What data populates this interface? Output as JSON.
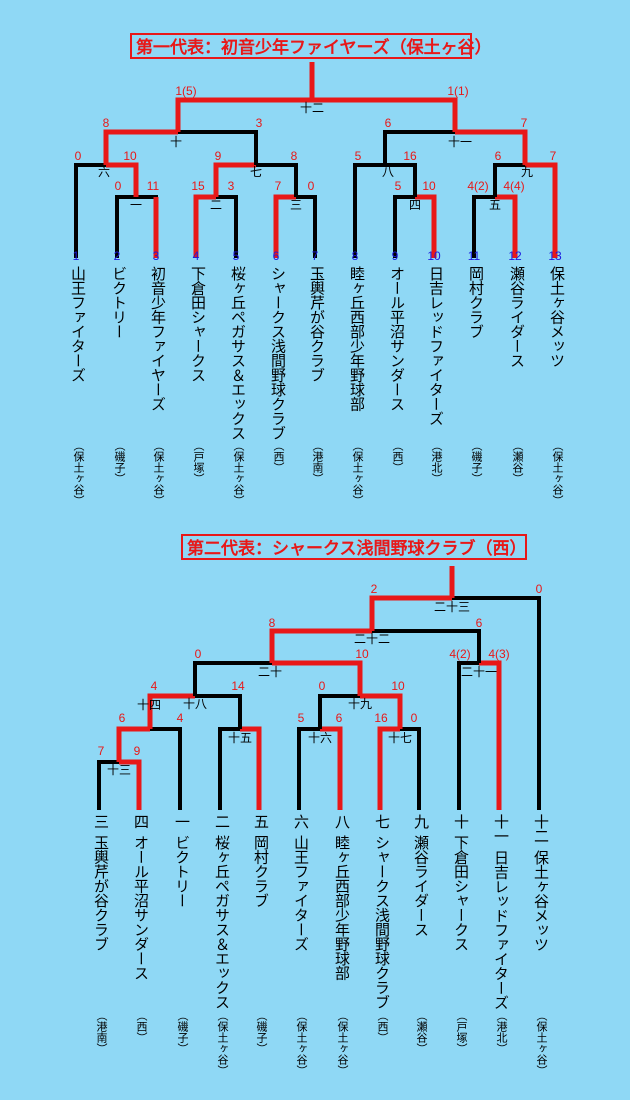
{
  "bracket1": {
    "title": "第一代表：初音少年ファイヤーズ（保土ヶ谷）",
    "teams": [
      {
        "seed": "1",
        "name": "山王ファイターズ",
        "district": "（保土ヶ谷）"
      },
      {
        "seed": "2",
        "name": "ビクトリー",
        "district": "（磯子）"
      },
      {
        "seed": "3",
        "name": "初音少年ファイヤーズ",
        "district": "（保土ヶ谷）"
      },
      {
        "seed": "4",
        "name": "下倉田シャークス",
        "district": "（戸塚）"
      },
      {
        "seed": "5",
        "name": "桜ヶ丘ペガサス＆エックス",
        "district": "（保土ヶ谷）"
      },
      {
        "seed": "6",
        "name": "シャークス浅間野球クラブ",
        "district": "（西）"
      },
      {
        "seed": "7",
        "name": "玉輿芹が谷クラブ",
        "district": "（港南）"
      },
      {
        "seed": "8",
        "name": "睦ヶ丘西部少年野球部",
        "district": "（保土ヶ谷）"
      },
      {
        "seed": "9",
        "name": "オール平沼サンダース",
        "district": "（西）"
      },
      {
        "seed": "10",
        "name": "日吉レッドファイターズ",
        "district": "（港北）"
      },
      {
        "seed": "11",
        "name": "岡村クラブ",
        "district": "（磯子）"
      },
      {
        "seed": "12",
        "name": "瀬谷ライダース",
        "district": "（瀬谷）"
      },
      {
        "seed": "13",
        "name": "保土ヶ谷メッツ",
        "district": "（保土ヶ谷）"
      }
    ],
    "match_labels": [
      "一",
      "二",
      "三",
      "四",
      "五",
      "六",
      "七",
      "八",
      "九",
      "十",
      "十一",
      "十二"
    ],
    "scores": [
      "0",
      "10",
      "0",
      "11",
      "15",
      "3",
      "7",
      "0",
      "5",
      "16",
      "5",
      "10",
      "4(2)",
      "4(4)",
      "6",
      "7",
      "8",
      "3",
      "9",
      "8",
      "6",
      "7",
      "1(5)",
      "1(1)"
    ]
  },
  "bracket2": {
    "title": "第二代表：シャークス浅間野球クラブ（西）",
    "teams": [
      {
        "seed": "三",
        "name": "玉輿芹が谷クラブ",
        "district": "（港南）"
      },
      {
        "seed": "四",
        "name": "オール平沼サンダース",
        "district": "（西）"
      },
      {
        "seed": "一",
        "name": "ビクトリー",
        "district": "（磯子）"
      },
      {
        "seed": "二",
        "name": "桜ヶ丘ペガサス＆エックス",
        "district": "（保土ヶ谷）"
      },
      {
        "seed": "五",
        "name": "岡村クラブ",
        "district": "（磯子）"
      },
      {
        "seed": "六",
        "name": "山王ファイターズ",
        "district": "（保土ヶ谷）"
      },
      {
        "seed": "八",
        "name": "睦ヶ丘西部少年野球部",
        "district": "（保土ヶ谷）"
      },
      {
        "seed": "七",
        "name": "シャークス浅間野球クラブ",
        "district": "（西）"
      },
      {
        "seed": "九",
        "name": "瀬谷ライダース",
        "district": "（瀬谷）"
      },
      {
        "seed": "十",
        "name": "下倉田シャークス",
        "district": "（戸塚）"
      },
      {
        "seed": "十一",
        "name": "日吉レッドファイターズ",
        "district": "（港北）"
      },
      {
        "seed": "十二",
        "name": "保土ヶ谷メッツ",
        "district": "（保土ヶ谷）"
      }
    ],
    "match_labels": [
      "十三",
      "十四",
      "十五",
      "十六",
      "十七",
      "十八",
      "十九",
      "二十",
      "二十一",
      "二十二",
      "二十三"
    ],
    "scores": [
      "7",
      "9",
      "6",
      "4",
      "4",
      "14",
      "5",
      "6",
      "16",
      "0",
      "0",
      "10",
      "4(2)",
      "4(3)",
      "0",
      "10",
      "8",
      "6",
      "2",
      "0"
    ]
  },
  "colors": {
    "background": "#8fd8f5",
    "winner_line": "#e81818",
    "loser_line": "#000000",
    "seed_blue": "#1a1ae0"
  }
}
